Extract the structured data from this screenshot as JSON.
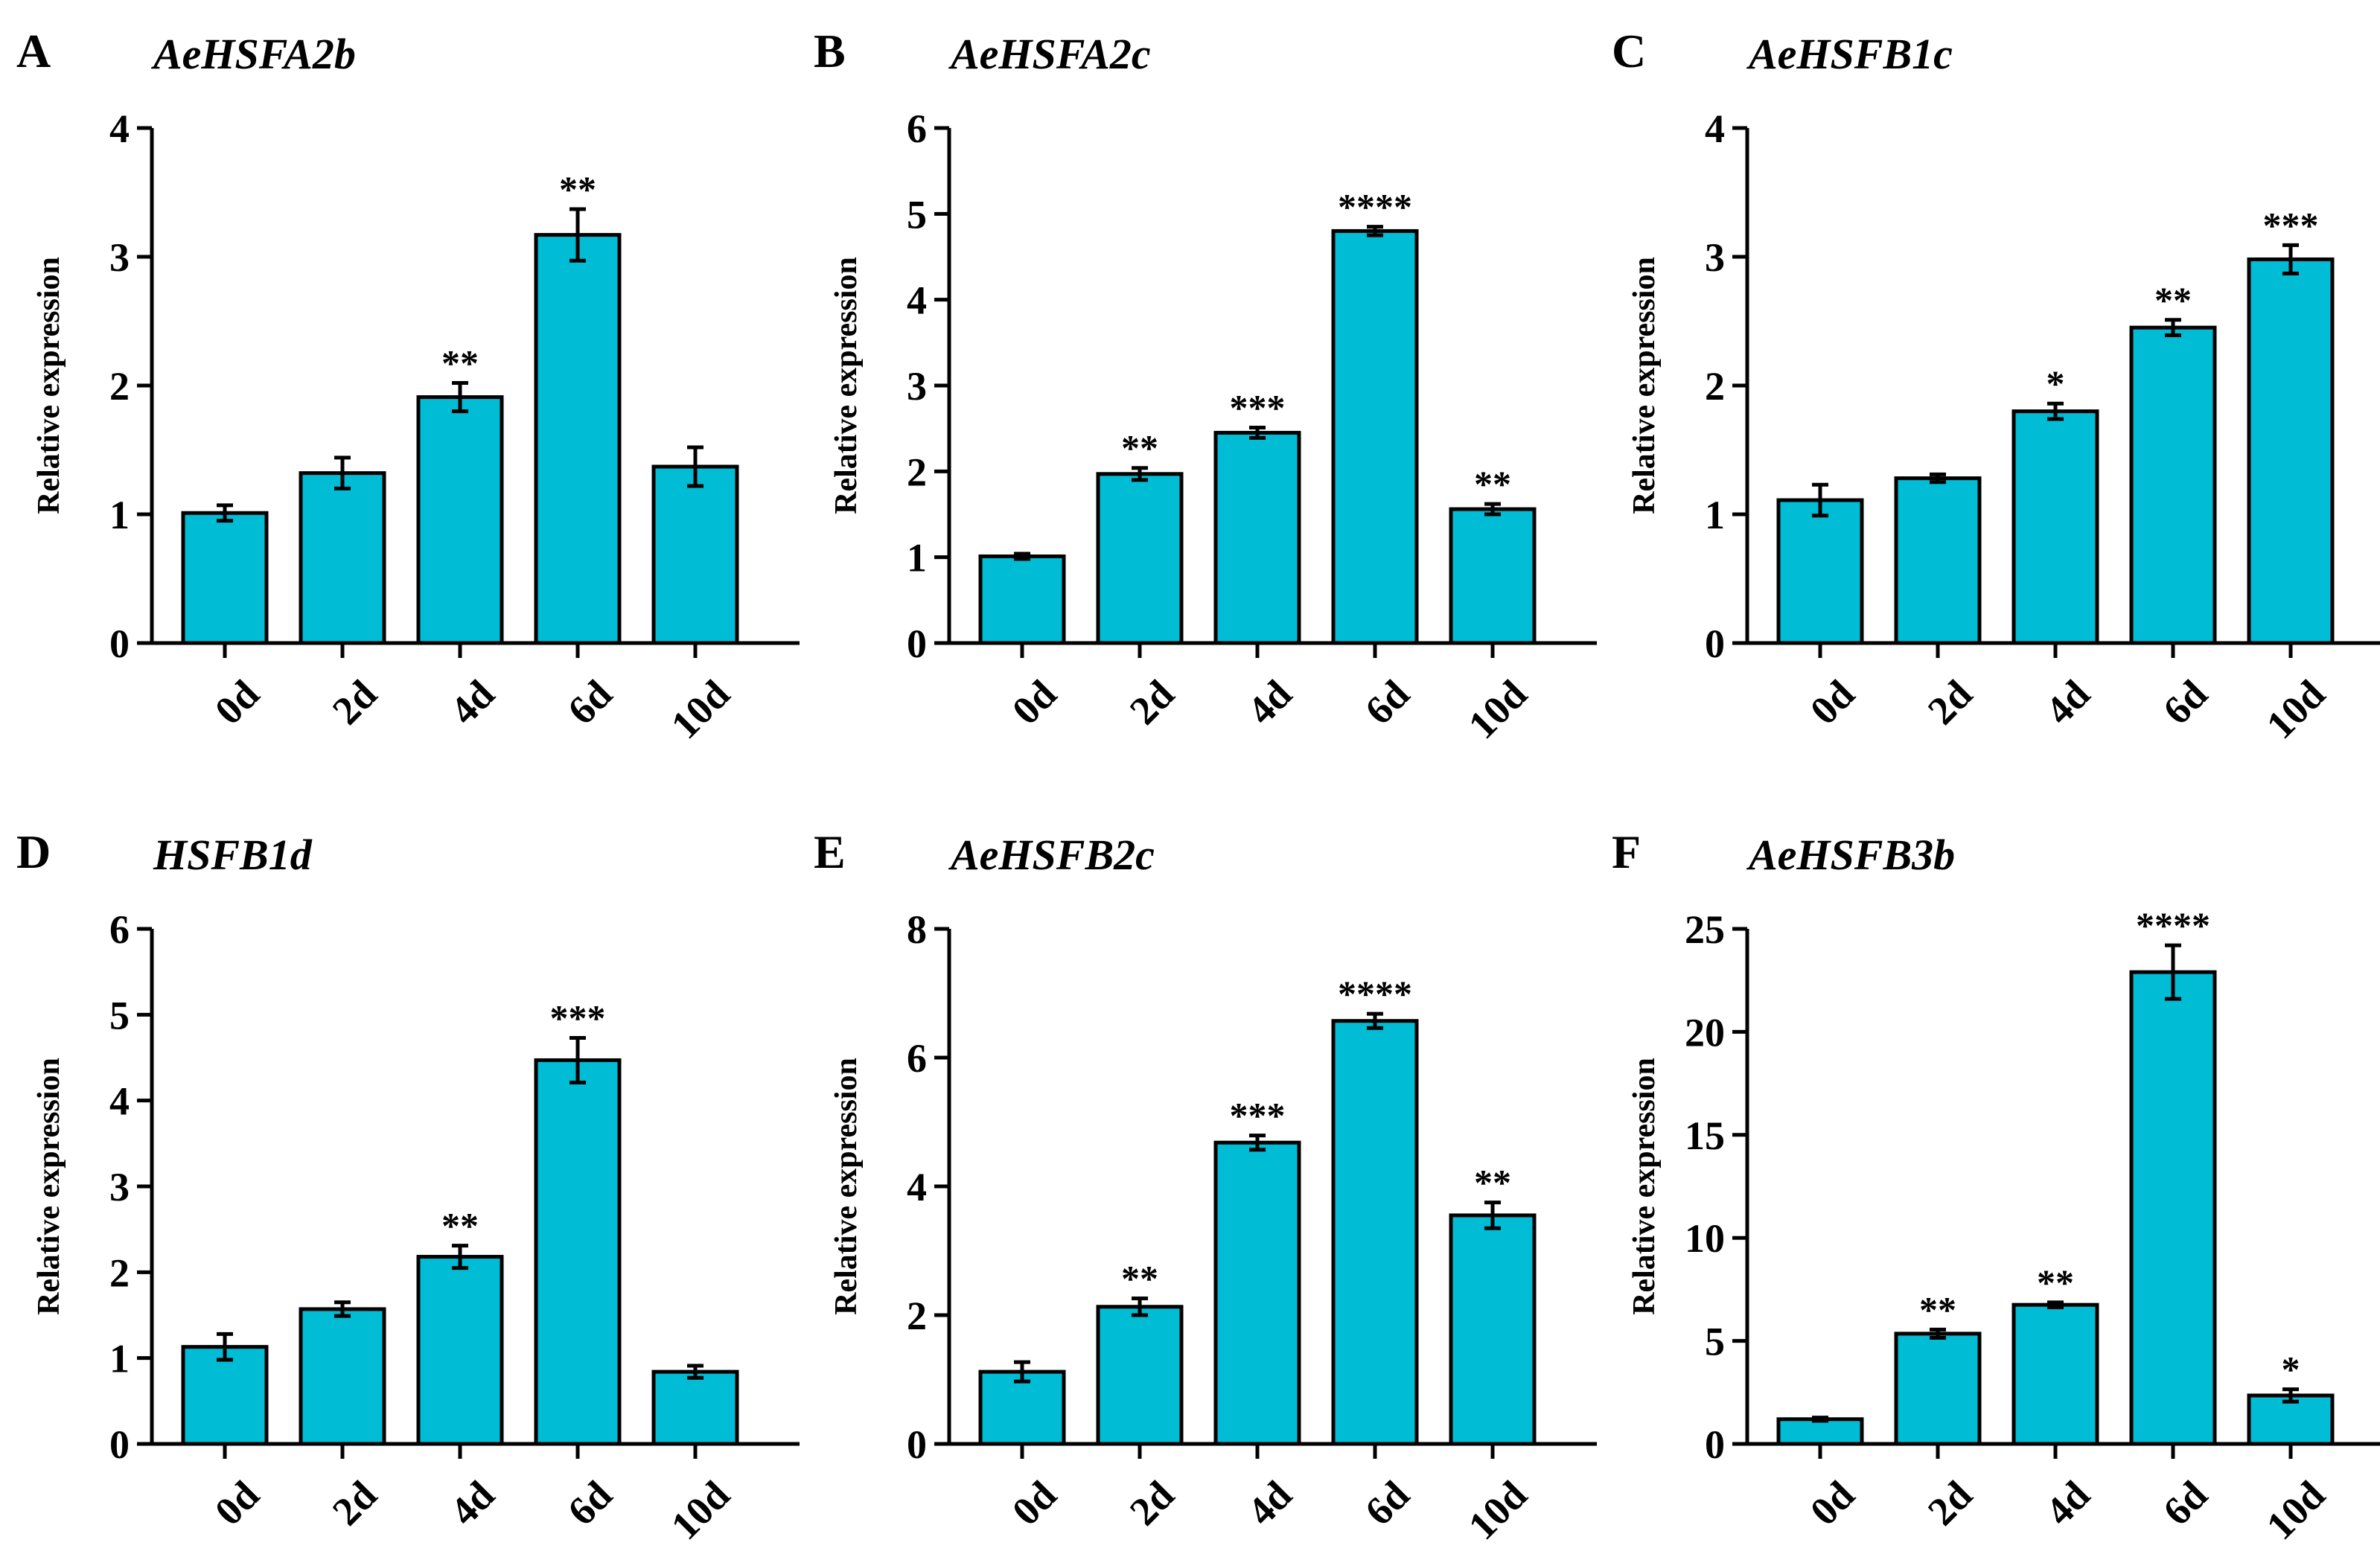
{
  "chart_data": [
    {
      "type": "bar",
      "panel": "A",
      "title": "AeHSFA2b",
      "ylabel": "Relative expression",
      "xlabel": "",
      "categories": [
        "0d",
        "2d",
        "4d",
        "6d",
        "10d"
      ],
      "values": [
        1.01,
        1.32,
        1.91,
        3.17,
        1.37
      ],
      "errors": [
        0.06,
        0.12,
        0.11,
        0.2,
        0.15
      ],
      "significance": [
        "",
        "",
        "**",
        "**",
        ""
      ],
      "ylim": [
        0,
        4
      ],
      "yticks": [
        "0",
        "1",
        "2",
        "3",
        "4"
      ],
      "color": "#00bcd4"
    },
    {
      "type": "bar",
      "panel": "B",
      "title": "AeHSFA2c",
      "ylabel": "Relative expression",
      "xlabel": "",
      "categories": [
        "0d",
        "2d",
        "4d",
        "6d",
        "10d"
      ],
      "values": [
        1.01,
        1.97,
        2.45,
        4.8,
        1.56
      ],
      "errors": [
        0.03,
        0.07,
        0.06,
        0.05,
        0.06
      ],
      "significance": [
        "",
        "**",
        "***",
        "****",
        "**"
      ],
      "ylim": [
        0,
        6
      ],
      "yticks": [
        "0",
        "1",
        "2",
        "3",
        "4",
        "5",
        "6"
      ],
      "color": "#00bcd4"
    },
    {
      "type": "bar",
      "panel": "C",
      "title": "AeHSFB1c",
      "ylabel": "Relative expression",
      "xlabel": "",
      "categories": [
        "0d",
        "2d",
        "4d",
        "6d",
        "10d"
      ],
      "values": [
        1.11,
        1.28,
        1.8,
        2.45,
        2.98
      ],
      "errors": [
        0.12,
        0.03,
        0.06,
        0.06,
        0.11
      ],
      "significance": [
        "",
        "",
        "*",
        "**",
        "***"
      ],
      "ylim": [
        0,
        4
      ],
      "yticks": [
        "0",
        "1",
        "2",
        "3",
        "4"
      ],
      "color": "#00bcd4"
    },
    {
      "type": "bar",
      "panel": "D",
      "title": "HSFB1d",
      "ylabel": "Relative expression",
      "xlabel": "",
      "categories": [
        "0d",
        "2d",
        "4d",
        "6d",
        "10d"
      ],
      "values": [
        1.13,
        1.57,
        2.18,
        4.47,
        0.84
      ],
      "errors": [
        0.15,
        0.08,
        0.13,
        0.26,
        0.07
      ],
      "significance": [
        "",
        "",
        "**",
        "***",
        ""
      ],
      "ylim": [
        0,
        6
      ],
      "yticks": [
        "0",
        "1",
        "2",
        "3",
        "4",
        "5",
        "6"
      ],
      "color": "#00bcd4"
    },
    {
      "type": "bar",
      "panel": "E",
      "title": "AeHSFB2c",
      "ylabel": "Relative expression",
      "xlabel": "",
      "categories": [
        "0d",
        "2d",
        "4d",
        "6d",
        "10d"
      ],
      "values": [
        1.12,
        2.13,
        4.68,
        6.57,
        3.55
      ],
      "errors": [
        0.15,
        0.13,
        0.11,
        0.11,
        0.2
      ],
      "significance": [
        "",
        "**",
        "***",
        "****",
        "**"
      ],
      "ylim": [
        0,
        8
      ],
      "yticks": [
        "0",
        "2",
        "4",
        "6",
        "8"
      ],
      "color": "#00bcd4"
    },
    {
      "type": "bar",
      "panel": "F",
      "title": "AeHSFB3b",
      "ylabel": "Relative expression",
      "xlabel": "",
      "categories": [
        "0d",
        "2d",
        "4d",
        "6d",
        "10d"
      ],
      "values": [
        1.2,
        5.35,
        6.75,
        22.9,
        2.35
      ],
      "errors": [
        0.08,
        0.2,
        0.12,
        1.3,
        0.3
      ],
      "significance": [
        "",
        "**",
        "**",
        "****",
        "*"
      ],
      "ylim": [
        0,
        25
      ],
      "yticks": [
        "0",
        "5",
        "10",
        "15",
        "20",
        "25"
      ],
      "color": "#00bcd4"
    }
  ]
}
